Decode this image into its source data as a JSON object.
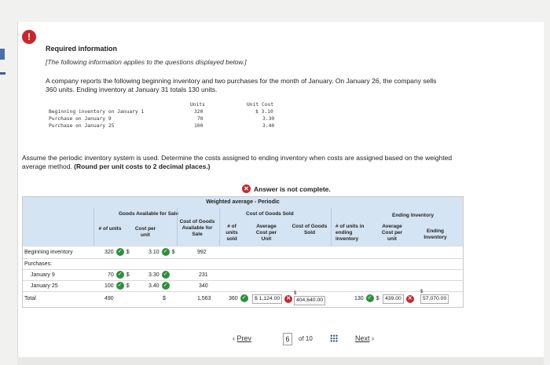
{
  "header": {
    "title": "Required information",
    "note": "[The following information applies to the questions displayed below.]",
    "body": "A company reports the following beginning inventory and two purchases for the month of January. On January 26, the company sells 360 units. Ending inventory at January 31 totals 130 units."
  },
  "given": {
    "col_units": "Units",
    "col_cost": "Unit Cost",
    "rows": [
      {
        "label": "Beginning inventory on January 1",
        "units": "320",
        "cost": "$ 3.10"
      },
      {
        "label": "Purchase on January 9",
        "units": "70",
        "cost": "3.30"
      },
      {
        "label": "Purchase on January 25",
        "units": "100",
        "cost": "3.40"
      }
    ]
  },
  "instruction": {
    "text": "Assume the periodic inventory system is used. Determine the costs assigned to ending inventory when costs are assigned based on the weighted average method.",
    "bold": "(Round per unit costs to 2 decimal places.)"
  },
  "status": {
    "label": "Answer is not complete."
  },
  "table": {
    "title": "Weighted average - Periodic",
    "groups": {
      "available": "Goods Available for Sale",
      "sold": "Cost of Goods Sold",
      "ending": "Ending Inventory"
    },
    "headers": {
      "units": "# of units",
      "cost_per_unit": "Cost per unit",
      "cogas": "Cost of Goods Available for Sale",
      "units_sold": "# of units sold",
      "avg_cost": "Average Cost per Unit",
      "cogs": "Cost of Goods Sold",
      "units_end": "# of units in ending inventory",
      "avg_cost_end": "Average Cost per unit",
      "ending_inv": "Ending Inventory"
    },
    "rows": {
      "beginning": {
        "label": "Beginning inventory",
        "units": "320",
        "dollar": "$",
        "cost": "3.10",
        "dollar2": "$",
        "cogas": "992"
      },
      "purchases": {
        "label": "Purchases:"
      },
      "jan9": {
        "label": "January 9",
        "units": "70",
        "dollar": "$",
        "cost": "3.30",
        "cogas": "231"
      },
      "jan25": {
        "label": "January 25",
        "units": "100",
        "dollar": "$",
        "cost": "3.40",
        "cogas": "340"
      },
      "total": {
        "label": "Total",
        "units": "490",
        "dollar": "$",
        "cogas": "1,563",
        "units_sold": "360",
        "avg_cost": "$ 1,124.00",
        "cogs_dollar": "$",
        "cogs": "404,640.00",
        "units_end": "130",
        "dollar_end": "$",
        "avg_cost_end": "439.00",
        "ending_dollar": "$",
        "ending_inv": "57,070.00"
      }
    }
  },
  "pager": {
    "prev": "Prev",
    "page": "6",
    "of": "of 10",
    "next": "Next"
  },
  "colors": {
    "header_band": "#d5e4f3",
    "error": "#c6272d",
    "ok": "#2f8f3c"
  }
}
